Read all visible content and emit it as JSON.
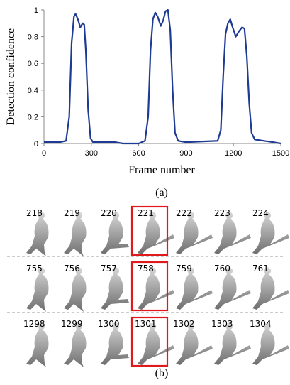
{
  "chart_data": {
    "type": "line",
    "xlabel": "Frame number",
    "ylabel": "Detection confidence",
    "color": "#1f3a93",
    "xlim": [
      0,
      1500
    ],
    "ylim": [
      0,
      1
    ],
    "xticks": [
      0,
      300,
      600,
      900,
      1200,
      1500
    ],
    "yticks": [
      0,
      0.2,
      0.4,
      0.6,
      0.8,
      1
    ],
    "x": [
      0,
      100,
      140,
      160,
      175,
      190,
      200,
      215,
      230,
      245,
      255,
      265,
      280,
      295,
      310,
      450,
      500,
      600,
      640,
      660,
      675,
      690,
      705,
      720,
      740,
      755,
      770,
      785,
      800,
      815,
      830,
      850,
      900,
      1100,
      1120,
      1135,
      1150,
      1165,
      1180,
      1195,
      1215,
      1235,
      1255,
      1270,
      1285,
      1300,
      1315,
      1335,
      1450,
      1500
    ],
    "values": [
      0.01,
      0.01,
      0.02,
      0.2,
      0.75,
      0.95,
      0.97,
      0.93,
      0.87,
      0.9,
      0.89,
      0.7,
      0.25,
      0.04,
      0.01,
      0.01,
      0.0,
      0.0,
      0.02,
      0.2,
      0.7,
      0.93,
      0.98,
      0.95,
      0.88,
      0.92,
      0.99,
      1.0,
      0.85,
      0.4,
      0.08,
      0.02,
      0.01,
      0.02,
      0.1,
      0.5,
      0.82,
      0.9,
      0.93,
      0.87,
      0.8,
      0.84,
      0.87,
      0.86,
      0.65,
      0.3,
      0.08,
      0.03,
      0.01,
      0.0
    ]
  },
  "caption_a": "(a)",
  "caption_b": "(b)",
  "frames": {
    "rows": [
      [
        "218",
        "219",
        "220",
        "221",
        "222",
        "223",
        "224"
      ],
      [
        "755",
        "756",
        "757",
        "758",
        "759",
        "760",
        "761"
      ],
      [
        "1298",
        "1299",
        "1300",
        "1301",
        "1302",
        "1303",
        "1304"
      ]
    ]
  }
}
